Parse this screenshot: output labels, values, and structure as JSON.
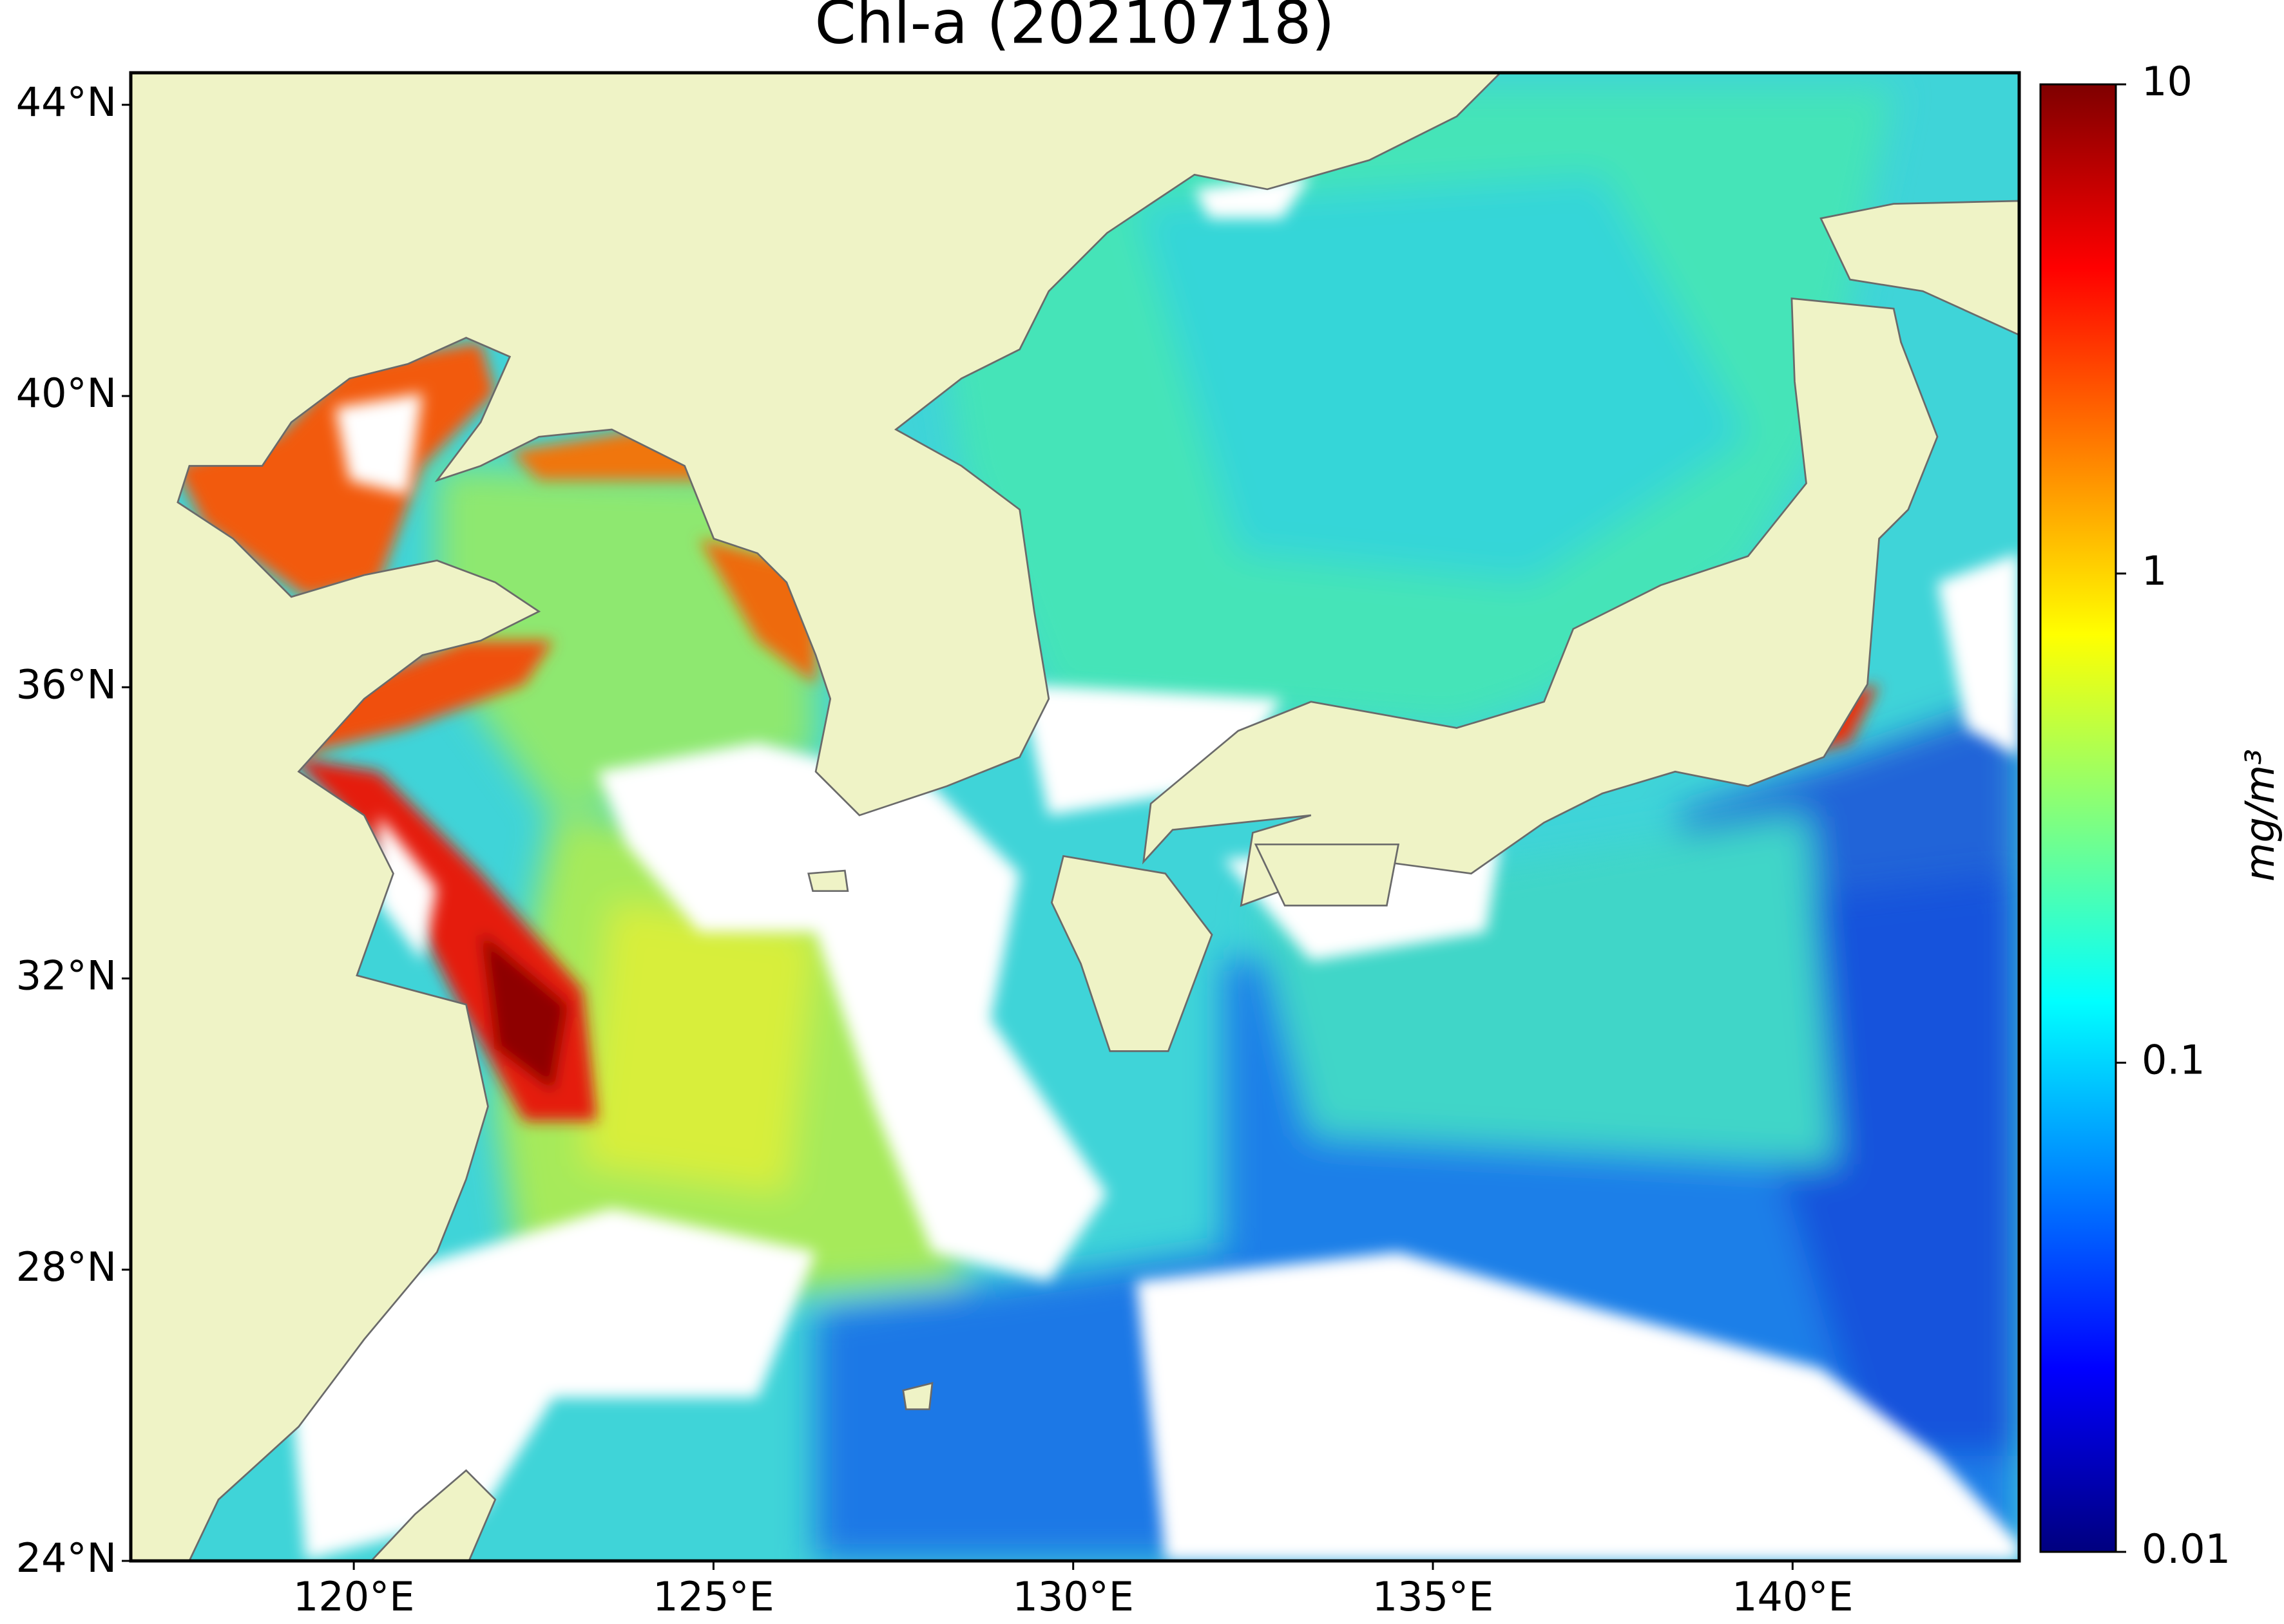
{
  "chart_data": {
    "type": "map",
    "title": "Chl-a (20210718)",
    "xlim": [
      116.9,
      143.15
    ],
    "xticks": [
      {
        "value": 120,
        "label": "120°E"
      },
      {
        "value": 125,
        "label": "125°E"
      },
      {
        "value": 130,
        "label": "130°E"
      },
      {
        "value": 135,
        "label": "135°E"
      },
      {
        "value": 140,
        "label": "140°E"
      }
    ],
    "ylim": [
      24,
      44.44
    ],
    "yticks": [
      {
        "value": 24,
        "label": "24°N"
      },
      {
        "value": 28,
        "label": "28°N"
      },
      {
        "value": 32,
        "label": "32°N"
      },
      {
        "value": 36,
        "label": "36°N"
      },
      {
        "value": 40,
        "label": "40°N"
      },
      {
        "value": 44,
        "label": "44°N"
      }
    ],
    "colorbar": {
      "label": "mg/m³",
      "scale": "log",
      "colormap": "jet",
      "lim": [
        0.01,
        10
      ],
      "ticks": [
        0.01,
        0.1,
        1,
        10
      ]
    }
  }
}
